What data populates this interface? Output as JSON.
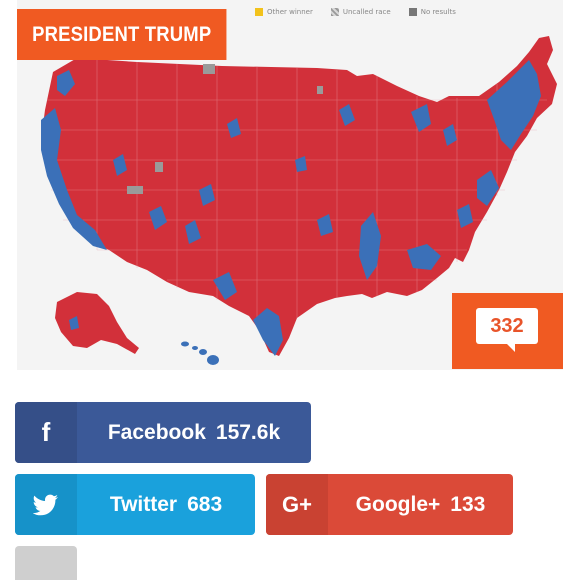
{
  "map": {
    "legend": [
      {
        "label": "Other winner",
        "color": "#f2c21b"
      },
      {
        "label": "Uncalled race",
        "color": "#9a9a9a"
      },
      {
        "label": "No results",
        "color": "#777777"
      }
    ],
    "colors": {
      "republican": "#d2303a",
      "democrat": "#3b70b8",
      "uncalled": "#9a9a9a",
      "background": "#f4f4f4"
    }
  },
  "title_badge": {
    "text": "PRESIDENT TRUMP",
    "color": "#f05a22"
  },
  "comments": {
    "count": "332"
  },
  "share": {
    "facebook": {
      "icon": "f",
      "label": "Facebook",
      "count": "157.6k",
      "color": "#3b5998"
    },
    "twitter": {
      "icon": "twitter-bird-icon",
      "label": "Twitter",
      "count": "683",
      "color": "#1aa1dc"
    },
    "googleplus": {
      "icon": "G+",
      "label": "Google+",
      "count": "133",
      "color": "#db4a38"
    }
  }
}
